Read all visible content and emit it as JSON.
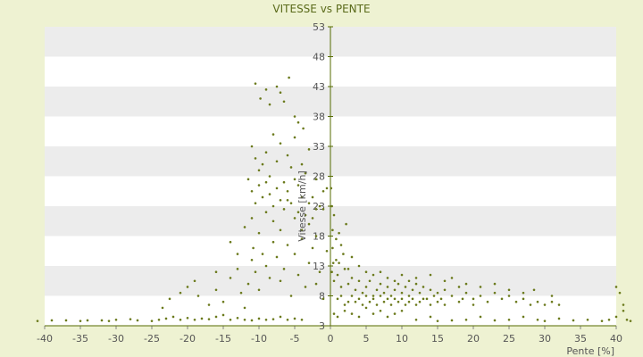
{
  "chart_data": {
    "type": "scatter",
    "title": "VITESSE vs PENTE",
    "xlabel": "Pente [%]",
    "ylabel": "Vitesse [km/h]",
    "xlim": [
      -40,
      40
    ],
    "ylim": [
      3,
      53
    ],
    "x_ticks": [
      -40,
      -35,
      -30,
      -25,
      -20,
      -15,
      -10,
      -5,
      0,
      5,
      10,
      15,
      20,
      25,
      30,
      35,
      40
    ],
    "y_ticks": [
      3,
      8,
      13,
      18,
      23,
      28,
      33,
      38,
      43,
      48,
      53
    ],
    "grid": true,
    "legend": "none",
    "colors": {
      "point": "#6b7a1c",
      "band": "#ececec",
      "plot_bg": "#ffffff",
      "page_bg": "#eef2d2",
      "axis": "#556b00"
    },
    "series": [
      {
        "points": [
          [
            -41,
            3.8
          ],
          [
            -39,
            3.9
          ],
          [
            -37,
            3.9
          ],
          [
            -35,
            3.8
          ],
          [
            -34,
            3.9
          ],
          [
            -32,
            3.9
          ],
          [
            -31,
            3.8
          ],
          [
            -30,
            4.0
          ],
          [
            -28,
            4.1
          ],
          [
            -27,
            3.9
          ],
          [
            -25,
            3.8
          ],
          [
            -24,
            4.0
          ],
          [
            -23,
            4.2
          ],
          [
            -22,
            4.5
          ],
          [
            -21,
            4.0
          ],
          [
            -20,
            4.3
          ],
          [
            -19,
            4.0
          ],
          [
            -18,
            4.2
          ],
          [
            -17,
            4.1
          ],
          [
            -16,
            4.5
          ],
          [
            -15,
            4.8
          ],
          [
            -14,
            4.0
          ],
          [
            -13,
            4.3
          ],
          [
            -12,
            4.0
          ],
          [
            -11,
            3.9
          ],
          [
            -10,
            4.2
          ],
          [
            -9,
            4.0
          ],
          [
            -8,
            4.1
          ],
          [
            -7,
            4.5
          ],
          [
            -6,
            4.0
          ],
          [
            -5,
            4.2
          ],
          [
            -4,
            4.0
          ],
          [
            -23.5,
            6.0
          ],
          [
            -22.5,
            7.5
          ],
          [
            -21,
            8.5
          ],
          [
            -20,
            9.5
          ],
          [
            -19,
            10.5
          ],
          [
            -18.5,
            8.0
          ],
          [
            -17,
            6.5
          ],
          [
            -16,
            9.0
          ],
          [
            -15,
            7.0
          ],
          [
            -14,
            11.0
          ],
          [
            -13,
            12.5
          ],
          [
            -12.5,
            8.5
          ],
          [
            -12,
            6.0
          ],
          [
            -11.5,
            10.0
          ],
          [
            -11,
            14.0
          ],
          [
            -10.8,
            16.0
          ],
          [
            -10.5,
            12.0
          ],
          [
            -10,
            9.0
          ],
          [
            -9.5,
            15.0
          ],
          [
            -9,
            13.0
          ],
          [
            -8.5,
            11.0
          ],
          [
            -8,
            17.0
          ],
          [
            -7.5,
            14.5
          ],
          [
            -7,
            10.5
          ],
          [
            -6.5,
            12.5
          ],
          [
            -6,
            16.5
          ],
          [
            -5.5,
            8.0
          ],
          [
            -5,
            15.0
          ],
          [
            -4.5,
            11.5
          ],
          [
            -4,
            19.0
          ],
          [
            -3.5,
            9.5
          ],
          [
            -3,
            13.5
          ],
          [
            -2.5,
            16.0
          ],
          [
            -2,
            10.0
          ],
          [
            -1.5,
            12.0
          ],
          [
            -1,
            7.5
          ],
          [
            -0.5,
            15.5
          ],
          [
            -16,
            12.0
          ],
          [
            -14,
            17.0
          ],
          [
            -13,
            15.0
          ],
          [
            -12,
            19.5
          ],
          [
            -11,
            21.0
          ],
          [
            -10,
            18.5
          ],
          [
            -9,
            22.0
          ],
          [
            -8,
            20.5
          ],
          [
            -7,
            19.0
          ],
          [
            -6,
            24.0
          ],
          [
            -5,
            21.0
          ],
          [
            -4,
            17.5
          ],
          [
            -3,
            20.0
          ],
          [
            -2,
            18.0
          ],
          [
            -1,
            22.5
          ],
          [
            -10.5,
            43.5
          ],
          [
            -9.8,
            41.0
          ],
          [
            -9,
            42.5
          ],
          [
            -8.5,
            40.0
          ],
          [
            -7.5,
            43.0
          ],
          [
            -7,
            42.0
          ],
          [
            -6.5,
            40.5
          ],
          [
            -5.8,
            44.5
          ],
          [
            -5,
            38.0
          ],
          [
            -4.5,
            37.0
          ],
          [
            -3.8,
            36.0
          ],
          [
            -11,
            33.0
          ],
          [
            -10.5,
            31.0
          ],
          [
            -10,
            29.0
          ],
          [
            -9.5,
            30.0
          ],
          [
            -9,
            32.0
          ],
          [
            -8.5,
            28.0
          ],
          [
            -8,
            35.0
          ],
          [
            -7.5,
            30.5
          ],
          [
            -7,
            33.5
          ],
          [
            -6.5,
            27.0
          ],
          [
            -6,
            31.5
          ],
          [
            -5.5,
            29.5
          ],
          [
            -5,
            34.5
          ],
          [
            -4.5,
            26.5
          ],
          [
            -4,
            30.0
          ],
          [
            -3.5,
            28.5
          ],
          [
            -3,
            32.5
          ],
          [
            -2.5,
            24.5
          ],
          [
            -2,
            27.5
          ],
          [
            -1.5,
            23.0
          ],
          [
            -1,
            25.5
          ],
          [
            -0.5,
            26.0
          ],
          [
            -11.5,
            27.5
          ],
          [
            -11,
            25.5
          ],
          [
            -10.5,
            23.5
          ],
          [
            -10,
            26.5
          ],
          [
            -9.5,
            24.5
          ],
          [
            -9,
            27.0
          ],
          [
            -8.5,
            25.0
          ],
          [
            -8,
            23.0
          ],
          [
            -7.5,
            26.0
          ],
          [
            -7,
            24.0
          ],
          [
            -6.5,
            22.5
          ],
          [
            -6,
            25.5
          ],
          [
            -5.5,
            23.5
          ],
          [
            -5,
            27.5
          ],
          [
            -4.5,
            22.0
          ],
          [
            -4,
            24.5
          ],
          [
            -3.5,
            21.5
          ],
          [
            -3,
            23.5
          ],
          [
            -2.5,
            21.0
          ],
          [
            -2,
            22.5
          ],
          [
            0.2,
            12.0
          ],
          [
            0.5,
            10.5
          ],
          [
            1,
            11.5
          ],
          [
            1.5,
            9.5
          ],
          [
            2,
            12.5
          ],
          [
            2.5,
            10.0
          ],
          [
            3,
            11.0
          ],
          [
            3.5,
            9.0
          ],
          [
            4,
            10.5
          ],
          [
            4.5,
            8.5
          ],
          [
            5,
            9.5
          ],
          [
            5.5,
            10.5
          ],
          [
            6,
            8.0
          ],
          [
            6.5,
            9.0
          ],
          [
            7,
            10.0
          ],
          [
            7.5,
            8.5
          ],
          [
            8,
            9.5
          ],
          [
            8.5,
            8.0
          ],
          [
            9,
            9.0
          ],
          [
            9.5,
            10.0
          ],
          [
            10,
            8.5
          ],
          [
            10.5,
            9.5
          ],
          [
            11,
            8.0
          ],
          [
            11.5,
            9.0
          ],
          [
            12,
            10.0
          ],
          [
            12.5,
            8.5
          ],
          [
            13,
            9.5
          ],
          [
            13.5,
            7.5
          ],
          [
            14,
            9.0
          ],
          [
            14.5,
            8.0
          ],
          [
            15,
            8.5
          ],
          [
            15.5,
            7.5
          ],
          [
            16,
            9.0
          ],
          [
            17,
            8.0
          ],
          [
            18,
            9.5
          ],
          [
            18.5,
            7.5
          ],
          [
            19,
            8.5
          ],
          [
            20,
            7.5
          ],
          [
            21,
            8.0
          ],
          [
            22,
            7.0
          ],
          [
            23,
            8.5
          ],
          [
            24,
            7.5
          ],
          [
            25,
            8.0
          ],
          [
            26,
            7.0
          ],
          [
            27,
            7.5
          ],
          [
            28,
            6.5
          ],
          [
            29,
            7.0
          ],
          [
            30,
            6.5
          ],
          [
            31,
            7.0
          ],
          [
            32,
            6.5
          ],
          [
            1,
            7.5
          ],
          [
            1.5,
            8.0
          ],
          [
            2,
            6.5
          ],
          [
            2.5,
            7.0
          ],
          [
            3,
            8.0
          ],
          [
            3.5,
            7.0
          ],
          [
            4,
            7.5
          ],
          [
            4.5,
            6.5
          ],
          [
            5,
            8.0
          ],
          [
            5.5,
            7.0
          ],
          [
            6,
            7.5
          ],
          [
            6.5,
            6.5
          ],
          [
            7,
            8.0
          ],
          [
            7.5,
            7.0
          ],
          [
            8,
            7.5
          ],
          [
            8.5,
            6.5
          ],
          [
            9,
            7.5
          ],
          [
            9.5,
            7.0
          ],
          [
            10,
            7.5
          ],
          [
            10.5,
            6.5
          ],
          [
            11,
            7.0
          ],
          [
            11.5,
            7.5
          ],
          [
            12,
            6.5
          ],
          [
            12.5,
            7.0
          ],
          [
            13,
            7.5
          ],
          [
            14,
            6.5
          ],
          [
            15,
            7.0
          ],
          [
            16,
            6.5
          ],
          [
            18,
            7.0
          ],
          [
            20,
            6.5
          ],
          [
            0.5,
            5.0
          ],
          [
            1,
            4.5
          ],
          [
            2,
            5.5
          ],
          [
            3,
            5.0
          ],
          [
            4,
            4.5
          ],
          [
            5,
            6.0
          ],
          [
            6,
            5.0
          ],
          [
            7,
            5.5
          ],
          [
            8,
            4.5
          ],
          [
            9,
            5.0
          ],
          [
            10,
            5.5
          ],
          [
            12,
            4.0
          ],
          [
            14,
            4.5
          ],
          [
            15,
            3.8
          ],
          [
            17,
            3.9
          ],
          [
            19,
            4.0
          ],
          [
            21,
            4.5
          ],
          [
            23,
            3.9
          ],
          [
            25,
            4.0
          ],
          [
            27,
            4.5
          ],
          [
            29,
            4.0
          ],
          [
            30,
            3.8
          ],
          [
            32,
            4.2
          ],
          [
            34,
            3.9
          ],
          [
            36,
            4.0
          ],
          [
            38,
            3.8
          ],
          [
            39,
            4.0
          ],
          [
            40,
            4.5
          ],
          [
            41,
            5.5
          ],
          [
            41.5,
            4.0
          ],
          [
            42,
            3.8
          ],
          [
            0.3,
            16.0
          ],
          [
            0.8,
            14.0
          ],
          [
            1.2,
            13.5
          ],
          [
            1.8,
            15.0
          ],
          [
            2.5,
            12.5
          ],
          [
            3,
            14.5
          ],
          [
            4,
            13.0
          ],
          [
            5,
            12.0
          ],
          [
            6,
            11.5
          ],
          [
            7,
            12.0
          ],
          [
            8,
            11.0
          ],
          [
            9,
            10.5
          ],
          [
            10,
            11.5
          ],
          [
            11,
            10.5
          ],
          [
            12,
            11.0
          ],
          [
            14,
            11.5
          ],
          [
            16,
            10.5
          ],
          [
            17,
            11.0
          ],
          [
            19,
            10.0
          ],
          [
            21,
            9.5
          ],
          [
            23,
            10.0
          ],
          [
            25,
            9.0
          ],
          [
            27,
            8.5
          ],
          [
            28.5,
            9.0
          ],
          [
            31,
            8.0
          ],
          [
            40,
            9.5
          ],
          [
            40.5,
            8.5
          ],
          [
            41,
            6.5
          ],
          [
            0.1,
            26.0
          ],
          [
            0.2,
            23.0
          ],
          [
            0.3,
            19.0
          ],
          [
            0.5,
            21.5
          ],
          [
            0.8,
            17.5
          ],
          [
            1.2,
            18.5
          ],
          [
            1.5,
            16.5
          ],
          [
            2.2,
            20.0
          ],
          [
            0.4,
            13.5
          ]
        ]
      }
    ]
  }
}
